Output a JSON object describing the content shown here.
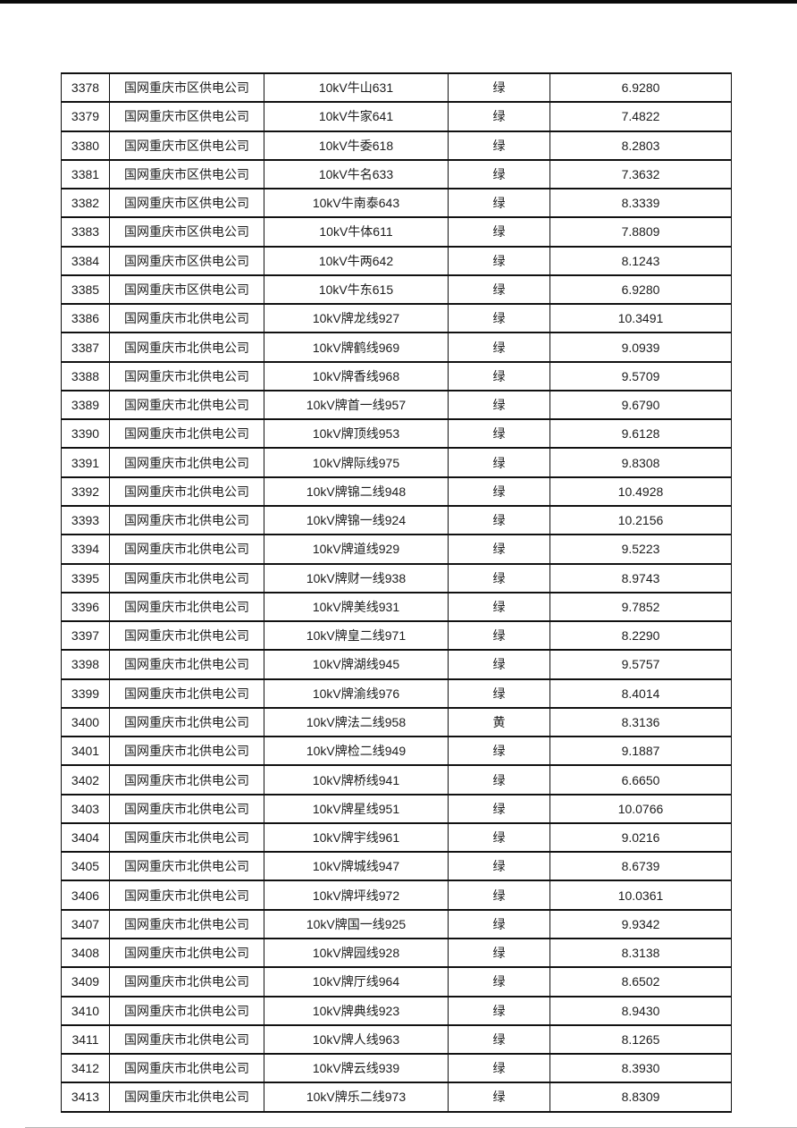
{
  "page": {
    "background": "#ffffff",
    "top_bar_color": "#0a0a0a",
    "text_color": "#1c1c1c",
    "border_color": "#111111"
  },
  "table": {
    "row_count": 36,
    "first_seq": "3378",
    "last_seq": "3413",
    "rows": [
      {
        "seq": "3378",
        "company": "国网重庆市区供电公司",
        "line": "10kV牛山631",
        "flag": "绿",
        "value": "6.9280"
      },
      {
        "seq": "3379",
        "company": "国网重庆市区供电公司",
        "line": "10kV牛家641",
        "flag": "绿",
        "value": "7.4822"
      },
      {
        "seq": "3380",
        "company": "国网重庆市区供电公司",
        "line": "10kV牛委618",
        "flag": "绿",
        "value": "8.2803"
      },
      {
        "seq": "3381",
        "company": "国网重庆市区供电公司",
        "line": "10kV牛名633",
        "flag": "绿",
        "value": "7.3632"
      },
      {
        "seq": "3382",
        "company": "国网重庆市区供电公司",
        "line": "10kV牛南泰643",
        "flag": "绿",
        "value": "8.3339"
      },
      {
        "seq": "3383",
        "company": "国网重庆市区供电公司",
        "line": "10kV牛体611",
        "flag": "绿",
        "value": "7.8809"
      },
      {
        "seq": "3384",
        "company": "国网重庆市区供电公司",
        "line": "10kV牛两642",
        "flag": "绿",
        "value": "8.1243"
      },
      {
        "seq": "3385",
        "company": "国网重庆市区供电公司",
        "line": "10kV牛东615",
        "flag": "绿",
        "value": "6.9280"
      },
      {
        "seq": "3386",
        "company": "国网重庆市北供电公司",
        "line": "10kV牌龙线927",
        "flag": "绿",
        "value": "10.3491"
      },
      {
        "seq": "3387",
        "company": "国网重庆市北供电公司",
        "line": "10kV牌鹤线969",
        "flag": "绿",
        "value": "9.0939"
      },
      {
        "seq": "3388",
        "company": "国网重庆市北供电公司",
        "line": "10kV牌香线968",
        "flag": "绿",
        "value": "9.5709"
      },
      {
        "seq": "3389",
        "company": "国网重庆市北供电公司",
        "line": "10kV牌首一线957",
        "flag": "绿",
        "value": "9.6790"
      },
      {
        "seq": "3390",
        "company": "国网重庆市北供电公司",
        "line": "10kV牌顶线953",
        "flag": "绿",
        "value": "9.6128"
      },
      {
        "seq": "3391",
        "company": "国网重庆市北供电公司",
        "line": "10kV牌际线975",
        "flag": "绿",
        "value": "9.8308"
      },
      {
        "seq": "3392",
        "company": "国网重庆市北供电公司",
        "line": "10kV牌锦二线948",
        "flag": "绿",
        "value": "10.4928"
      },
      {
        "seq": "3393",
        "company": "国网重庆市北供电公司",
        "line": "10kV牌锦一线924",
        "flag": "绿",
        "value": "10.2156"
      },
      {
        "seq": "3394",
        "company": "国网重庆市北供电公司",
        "line": "10kV牌道线929",
        "flag": "绿",
        "value": "9.5223"
      },
      {
        "seq": "3395",
        "company": "国网重庆市北供电公司",
        "line": "10kV牌财一线938",
        "flag": "绿",
        "value": "8.9743"
      },
      {
        "seq": "3396",
        "company": "国网重庆市北供电公司",
        "line": "10kV牌美线931",
        "flag": "绿",
        "value": "9.7852"
      },
      {
        "seq": "3397",
        "company": "国网重庆市北供电公司",
        "line": "10kV牌皇二线971",
        "flag": "绿",
        "value": "8.2290"
      },
      {
        "seq": "3398",
        "company": "国网重庆市北供电公司",
        "line": "10kV牌湖线945",
        "flag": "绿",
        "value": "9.5757"
      },
      {
        "seq": "3399",
        "company": "国网重庆市北供电公司",
        "line": "10kV牌渝线976",
        "flag": "绿",
        "value": "8.4014"
      },
      {
        "seq": "3400",
        "company": "国网重庆市北供电公司",
        "line": "10kV牌法二线958",
        "flag": "黄",
        "value": "8.3136"
      },
      {
        "seq": "3401",
        "company": "国网重庆市北供电公司",
        "line": "10kV牌检二线949",
        "flag": "绿",
        "value": "9.1887"
      },
      {
        "seq": "3402",
        "company": "国网重庆市北供电公司",
        "line": "10kV牌桥线941",
        "flag": "绿",
        "value": "6.6650"
      },
      {
        "seq": "3403",
        "company": "国网重庆市北供电公司",
        "line": "10kV牌星线951",
        "flag": "绿",
        "value": "10.0766"
      },
      {
        "seq": "3404",
        "company": "国网重庆市北供电公司",
        "line": "10kV牌宇线961",
        "flag": "绿",
        "value": "9.0216"
      },
      {
        "seq": "3405",
        "company": "国网重庆市北供电公司",
        "line": "10kV牌城线947",
        "flag": "绿",
        "value": "8.6739"
      },
      {
        "seq": "3406",
        "company": "国网重庆市北供电公司",
        "line": "10kV牌坪线972",
        "flag": "绿",
        "value": "10.0361"
      },
      {
        "seq": "3407",
        "company": "国网重庆市北供电公司",
        "line": "10kV牌国一线925",
        "flag": "绿",
        "value": "9.9342"
      },
      {
        "seq": "3408",
        "company": "国网重庆市北供电公司",
        "line": "10kV牌园线928",
        "flag": "绿",
        "value": "8.3138"
      },
      {
        "seq": "3409",
        "company": "国网重庆市北供电公司",
        "line": "10kV牌厅线964",
        "flag": "绿",
        "value": "8.6502"
      },
      {
        "seq": "3410",
        "company": "国网重庆市北供电公司",
        "line": "10kV牌典线923",
        "flag": "绿",
        "value": "8.9430"
      },
      {
        "seq": "3411",
        "company": "国网重庆市北供电公司",
        "line": "10kV牌人线963",
        "flag": "绿",
        "value": "8.1265"
      },
      {
        "seq": "3412",
        "company": "国网重庆市北供电公司",
        "line": "10kV牌云线939",
        "flag": "绿",
        "value": "8.3930"
      },
      {
        "seq": "3413",
        "company": "国网重庆市北供电公司",
        "line": "10kV牌乐二线973",
        "flag": "绿",
        "value": "8.8309"
      }
    ]
  }
}
